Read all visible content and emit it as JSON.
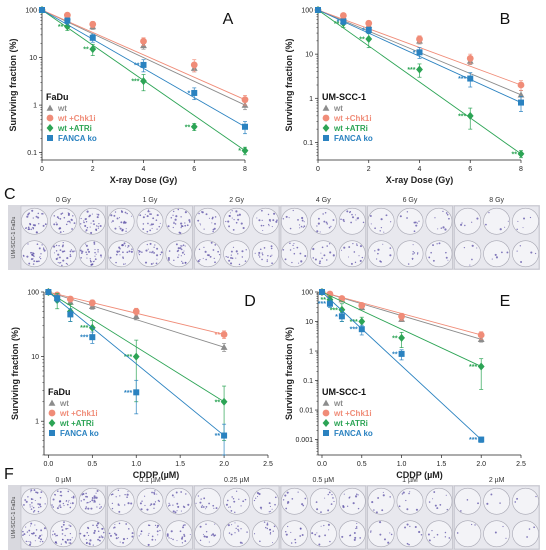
{
  "colors": {
    "wt": "#8c8c8c",
    "chk1i": "#f08c78",
    "atri": "#2ca455",
    "fanca": "#2a82c0"
  },
  "legend": [
    {
      "key": "wt",
      "label": "wt",
      "marker": "triangle"
    },
    {
      "key": "chk1i",
      "label": "wt +Chk1i",
      "marker": "circle"
    },
    {
      "key": "atri",
      "label": "wt +ATRi",
      "marker": "diamond"
    },
    {
      "key": "fanca",
      "label": "FANCA ko",
      "marker": "square"
    }
  ],
  "chart_data": [
    {
      "type": "scatter",
      "panel": "A",
      "cell_line": "FaDu",
      "xlabel": "X-ray Dose (Gy)",
      "ylabel": "Surviving fraction (%)",
      "xlim": [
        0,
        8
      ],
      "ylim": [
        0.07,
        100
      ],
      "yscale": "log",
      "xticks": [
        0,
        2,
        4,
        6,
        8
      ],
      "yticks": [
        0.1,
        1,
        10,
        100
      ],
      "series": [
        {
          "key": "wt",
          "x": [
            0,
            1,
            2,
            4,
            6,
            8
          ],
          "y": [
            100,
            70,
            45,
            18,
            6,
            1.0
          ],
          "err": [
            0,
            8,
            6,
            3,
            1,
            0.2
          ]
        },
        {
          "key": "chk1i",
          "x": [
            0,
            1,
            2,
            4,
            6,
            8
          ],
          "y": [
            100,
            78,
            50,
            22,
            7,
            1.3
          ],
          "err": [
            0,
            9,
            7,
            4,
            2,
            0.3
          ]
        },
        {
          "key": "atri",
          "x": [
            0,
            1,
            2,
            4,
            6,
            8
          ],
          "y": [
            100,
            45,
            15,
            3.2,
            0.35,
            0.11
          ],
          "err": [
            0,
            8,
            4,
            1.2,
            0.06,
            0.02
          ],
          "stars": [
            "",
            "**",
            "**",
            "***",
            "**",
            "*"
          ]
        },
        {
          "key": "fanca",
          "x": [
            0,
            1,
            2,
            4,
            6,
            8
          ],
          "y": [
            100,
            60,
            26,
            7,
            1.8,
            0.35
          ],
          "err": [
            0,
            8,
            5,
            2,
            0.5,
            0.1
          ],
          "stars": [
            "",
            "",
            "",
            "**",
            "*",
            ""
          ]
        }
      ]
    },
    {
      "type": "scatter",
      "panel": "B",
      "cell_line": "UM-SCC-1",
      "xlabel": "X-ray Dose (Gy)",
      "ylabel": "Surviving fraction (%)",
      "xlim": [
        0,
        8
      ],
      "ylim": [
        0.04,
        100
      ],
      "yscale": "log",
      "xticks": [
        0,
        2,
        4,
        6,
        8
      ],
      "yticks": [
        0.1,
        1,
        10,
        100
      ],
      "series": [
        {
          "key": "wt",
          "x": [
            0,
            1,
            2,
            4,
            6,
            8
          ],
          "y": [
            100,
            70,
            45,
            20,
            7,
            1.2
          ],
          "err": [
            0,
            8,
            6,
            3,
            1.2,
            0.3
          ]
        },
        {
          "key": "chk1i",
          "x": [
            0,
            1,
            2,
            4,
            6,
            8
          ],
          "y": [
            100,
            75,
            50,
            22,
            8,
            2
          ],
          "err": [
            0,
            8,
            7,
            4,
            2,
            0.5
          ]
        },
        {
          "key": "atri",
          "x": [
            0,
            1,
            2,
            4,
            6,
            8
          ],
          "y": [
            100,
            50,
            22,
            4.5,
            0.4,
            0.055
          ],
          "err": [
            0,
            10,
            8,
            1.5,
            0.2,
            0.01
          ],
          "stars": [
            "",
            "**",
            "**",
            "***",
            "***",
            "**"
          ]
        },
        {
          "key": "fanca",
          "x": [
            0,
            1,
            2,
            4,
            6,
            8
          ],
          "y": [
            100,
            55,
            35,
            11,
            2.8,
            0.8
          ],
          "err": [
            0,
            8,
            6,
            3,
            1,
            0.3
          ],
          "stars": [
            "",
            "*",
            "*",
            "*",
            "***",
            ""
          ]
        }
      ]
    },
    {
      "type": "scatter",
      "panel": "D",
      "cell_line": "FaDu",
      "xlabel": "CDDP (µM)",
      "ylabel": "Surviving fraction (%)",
      "xlim": [
        -0.05,
        2.5
      ],
      "ylim": [
        0.3,
        100
      ],
      "yscale": "log",
      "xticks": [
        0.0,
        0.5,
        1.0,
        1.5,
        2.0,
        2.5
      ],
      "yticks": [
        1,
        10,
        100
      ],
      "series": [
        {
          "key": "wt",
          "x": [
            0,
            0.1,
            0.25,
            0.5,
            1.0,
            2.0
          ],
          "y": [
            100,
            88,
            70,
            60,
            42,
            14
          ],
          "err": [
            0,
            8,
            6,
            6,
            5,
            2
          ]
        },
        {
          "key": "chk1i",
          "x": [
            0,
            0.1,
            0.25,
            0.5,
            1.0,
            2.0
          ],
          "y": [
            100,
            90,
            78,
            68,
            50,
            22
          ],
          "err": [
            0,
            8,
            7,
            7,
            6,
            3
          ],
          "stars": [
            "",
            "",
            "",
            "",
            "",
            "**"
          ]
        },
        {
          "key": "atri",
          "x": [
            0,
            0.1,
            0.25,
            0.5,
            1.0,
            2.0
          ],
          "y": [
            100,
            75,
            50,
            28,
            10,
            2.0
          ],
          "err": [
            0,
            20,
            15,
            8,
            8,
            1.5
          ],
          "stars": [
            "",
            "",
            "",
            "***",
            "***",
            "**"
          ]
        },
        {
          "key": "fanca",
          "x": [
            0,
            0.1,
            0.25,
            0.5,
            1.0,
            2.0
          ],
          "y": [
            100,
            80,
            45,
            20,
            2.8,
            0.6
          ],
          "err": [
            0,
            10,
            10,
            4,
            1.5,
            0.3
          ],
          "stars": [
            "",
            "",
            "",
            "***",
            "***",
            "**"
          ]
        }
      ]
    },
    {
      "type": "scatter",
      "panel": "E",
      "cell_line": "UM-SCC-1",
      "xlabel": "CDDP (µM)",
      "ylabel": "Surviving fraction (%)",
      "xlim": [
        -0.05,
        2.5
      ],
      "ylim": [
        0.0003,
        100
      ],
      "yscale": "log",
      "xticks": [
        0.0,
        0.5,
        1.0,
        1.5,
        2.0,
        2.5
      ],
      "yticks": [
        0.001,
        0.01,
        0.1,
        1,
        10,
        100
      ],
      "series": [
        {
          "key": "wt",
          "x": [
            0,
            0.1,
            0.25,
            0.5,
            1.0,
            2.0
          ],
          "y": [
            100,
            80,
            55,
            30,
            12,
            2.5
          ],
          "err": [
            0,
            8,
            6,
            4,
            2,
            0.5
          ]
        },
        {
          "key": "chk1i",
          "x": [
            0,
            0.1,
            0.25,
            0.5,
            1.0,
            2.0
          ],
          "y": [
            100,
            85,
            60,
            35,
            15,
            3.5
          ],
          "err": [
            0,
            8,
            6,
            5,
            4,
            1
          ]
        },
        {
          "key": "atri",
          "x": [
            0,
            0.1,
            0.25,
            0.5,
            1.0,
            2.0
          ],
          "y": [
            100,
            55,
            25,
            10,
            2.8,
            0.3
          ],
          "err": [
            0,
            15,
            15,
            4,
            1.5,
            0.25
          ],
          "stars": [
            "",
            "**",
            "***",
            "***",
            "**",
            "***"
          ]
        },
        {
          "key": "fanca",
          "x": [
            0,
            0.1,
            0.25,
            0.5,
            1.0,
            2.0
          ],
          "y": [
            100,
            40,
            15,
            5.5,
            0.8,
            0.001
          ],
          "err": [
            0,
            10,
            5,
            2,
            0.3,
            0.0002
          ],
          "stars": [
            "",
            "***",
            "*",
            "***",
            "**",
            "***"
          ]
        }
      ]
    }
  ],
  "plates": [
    {
      "panel": "C",
      "strip_label": "UM-SCC-1  FaDu",
      "doses": [
        "0 Gy",
        "1 Gy",
        "2 Gy",
        "4 Gy",
        "6 Gy",
        "8 Gy"
      ],
      "density": [
        1.0,
        0.8,
        0.55,
        0.45,
        0.3,
        0.15
      ]
    },
    {
      "panel": "F",
      "strip_label": "UM-SCC-1  FaDu",
      "doses": [
        "0 µM",
        "0.1 µM",
        "0.25 µM",
        "0.5 µM",
        "1 µM",
        "2 µM"
      ],
      "density": [
        1.0,
        0.6,
        0.45,
        0.35,
        0.25,
        0.1
      ]
    }
  ]
}
